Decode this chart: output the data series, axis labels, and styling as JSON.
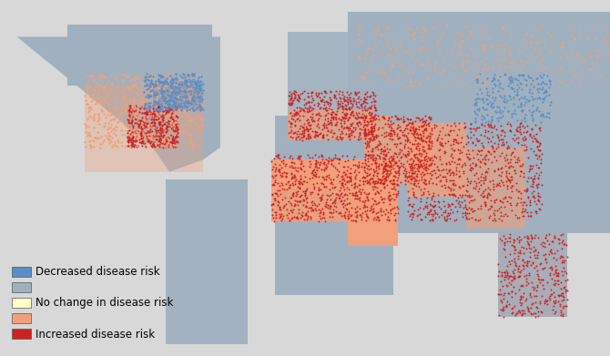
{
  "background_color": "#d8d8d8",
  "colors": {
    "decreased": "#5b8ec4",
    "no_change_grey": "#a0b0bf",
    "no_change_yellow": "#ffffc8",
    "increased_light": "#f0a07a",
    "increased_dark": "#cc2222",
    "ocean": "#d8d8d8",
    "white_area": "#ffffff"
  },
  "legend": [
    {
      "label": "Decreased disease risk",
      "color": "#5b8ec4"
    },
    {
      "label": "",
      "color": "#a0b0bf"
    },
    {
      "label": "No change in disease risk",
      "color": "#ffffc8"
    },
    {
      "label": "",
      "color": "#f0a07a"
    },
    {
      "label": "Increased disease risk",
      "color": "#cc2222"
    }
  ],
  "legend_font_size": 8.5
}
